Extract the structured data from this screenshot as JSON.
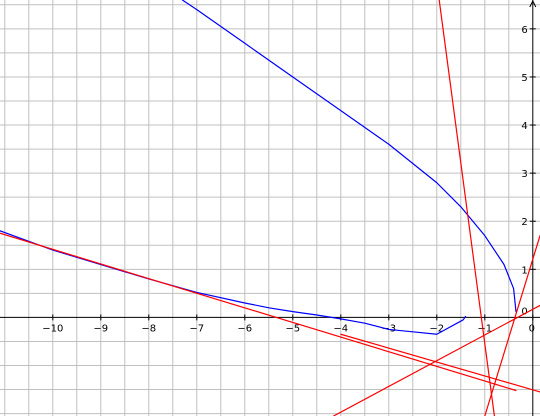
{
  "chart_data": {
    "type": "line",
    "title": "",
    "xlabel": "",
    "ylabel": "",
    "xlim": [
      -11.1,
      0.15
    ],
    "ylim": [
      -2.05,
      6.6
    ],
    "grid": true,
    "x_ticks": [
      -10,
      -9,
      -8,
      -7,
      -6,
      -5,
      -4,
      -3,
      -2,
      -1,
      0
    ],
    "y_ticks": [
      1,
      2,
      3,
      4,
      5,
      6
    ],
    "x_tick_labels": [
      "−10",
      "−9",
      "−8",
      "−7",
      "−6",
      "−5",
      "−4",
      "−3",
      "−2",
      "−1",
      "0"
    ],
    "y_tick_labels": [
      "1",
      "2",
      "3",
      "4",
      "5",
      "6"
    ],
    "origin_label": "0",
    "series": [
      {
        "kind": "parametric curve",
        "color": "#0000ff",
        "points": [
          [
            -1.4,
            0.02
          ],
          [
            -1.45,
            -0.05
          ],
          [
            -2.0,
            -0.35
          ],
          [
            -2.5,
            -0.3
          ],
          [
            -3.0,
            -0.25
          ],
          [
            -3.5,
            -0.12
          ],
          [
            -4.0,
            -0.03
          ],
          [
            -4.5,
            0.05
          ],
          [
            -5.0,
            0.12
          ],
          [
            -5.5,
            0.2
          ],
          [
            -6.0,
            0.3
          ],
          [
            -7.0,
            0.52
          ],
          [
            -8.0,
            0.8
          ],
          [
            -9.0,
            1.1
          ],
          [
            -10.0,
            1.4
          ],
          [
            -11.1,
            1.8
          ]
        ]
      },
      {
        "kind": "parametric curve",
        "color": "#0000ff",
        "points": [
          [
            -0.35,
            0.12
          ],
          [
            -0.4,
            0.6
          ],
          [
            -0.6,
            1.1
          ],
          [
            -1.0,
            1.7
          ],
          [
            -1.5,
            2.3
          ],
          [
            -2.0,
            2.8
          ],
          [
            -2.5,
            3.2
          ],
          [
            -3.0,
            3.6
          ],
          [
            -4.0,
            4.3
          ],
          [
            -5.0,
            5.0
          ],
          [
            -6.0,
            5.7
          ],
          [
            -7.0,
            6.4
          ],
          [
            -7.3,
            6.6
          ]
        ]
      },
      {
        "kind": "line",
        "color": "#ff0000",
        "points": [
          [
            -11.1,
            1.75
          ],
          [
            -0.35,
            -1.52
          ]
        ]
      },
      {
        "kind": "line",
        "color": "#ff0000",
        "points": [
          [
            -1.95,
            6.6
          ],
          [
            -0.8,
            -2.05
          ]
        ]
      },
      {
        "kind": "line",
        "color": "#ff0000",
        "points": [
          [
            -4.15,
            -2.05
          ],
          [
            0.15,
            0.25
          ]
        ]
      },
      {
        "kind": "line",
        "color": "#ff0000",
        "points": [
          [
            -1.0,
            -2.05
          ],
          [
            0.15,
            1.7
          ]
        ]
      },
      {
        "kind": "line",
        "color": "#ff0000",
        "points": [
          [
            -4.0,
            -0.35
          ],
          [
            0.15,
            -1.55
          ]
        ]
      }
    ]
  }
}
